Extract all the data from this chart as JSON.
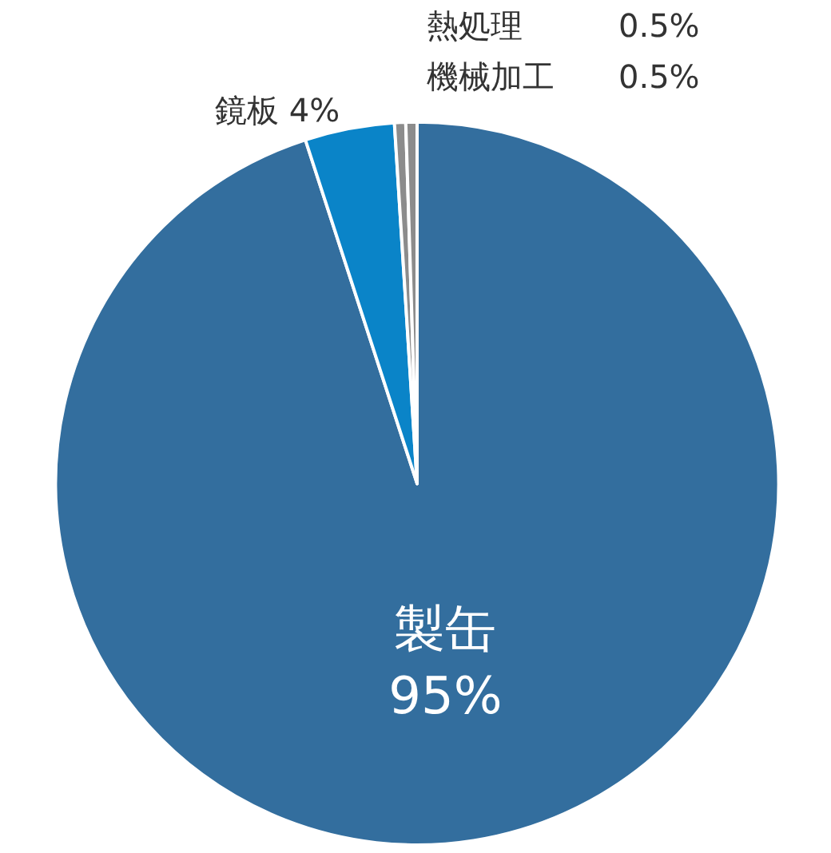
{
  "chart_data": {
    "type": "pie",
    "categories": [
      "製缶",
      "鏡板",
      "熱処理",
      "機械加工"
    ],
    "values": [
      95,
      4,
      0.5,
      0.5
    ],
    "value_labels": [
      "95%",
      "4%",
      "0.5%",
      "0.5%"
    ],
    "colors": [
      "#336e9e",
      "#0a84c8",
      "#8c8c8c",
      "#8c8c8c"
    ],
    "legend": false
  }
}
